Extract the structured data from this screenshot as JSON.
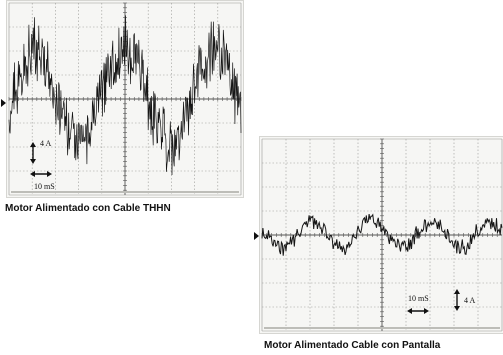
{
  "chart_data": [
    {
      "type": "line",
      "title": "",
      "caption": "Motor Alimentado con Cable THHN",
      "scale": {
        "current": "4 A",
        "time": "10 mS"
      },
      "grid": true,
      "divisions": {
        "x": 10,
        "y": 8
      },
      "series": [
        {
          "style": "noisy waveform",
          "x": [
            0,
            0.5,
            1,
            1.5,
            2,
            2.5,
            3,
            3.5,
            4,
            4.5,
            5,
            5.5,
            6,
            6.5,
            7,
            7.5,
            8,
            8.5,
            9,
            9.5,
            10
          ],
          "y": [
            -0.4,
            0.9,
            2.1,
            1.7,
            0.2,
            -1.2,
            -2.0,
            -1.3,
            0.5,
            1.6,
            2.2,
            1.6,
            0.0,
            -1.4,
            -2.1,
            -1.3,
            0.5,
            1.7,
            2.2,
            1.0,
            -0.6
          ]
        }
      ]
    },
    {
      "type": "line",
      "title": "",
      "caption": "Motor Alimentado Cable con Pantalla",
      "scale": {
        "current": "4 A",
        "time": "10 mS"
      },
      "grid": true,
      "divisions": {
        "x": 10,
        "y": 8
      },
      "series": [
        {
          "style": "noisy waveform",
          "x": [
            0,
            0.5,
            1,
            1.5,
            2,
            2.5,
            3,
            3.5,
            4,
            4.5,
            5,
            5.5,
            6,
            6.5,
            7,
            7.5,
            8,
            8.5,
            9,
            9.5,
            10
          ],
          "y": [
            0.0,
            -0.3,
            -0.6,
            0.1,
            0.6,
            0.3,
            -0.4,
            -0.6,
            0.2,
            0.7,
            0.4,
            -0.3,
            -0.6,
            0.1,
            0.6,
            0.3,
            -0.4,
            -0.5,
            0.2,
            0.6,
            0.2
          ]
        }
      ]
    }
  ]
}
